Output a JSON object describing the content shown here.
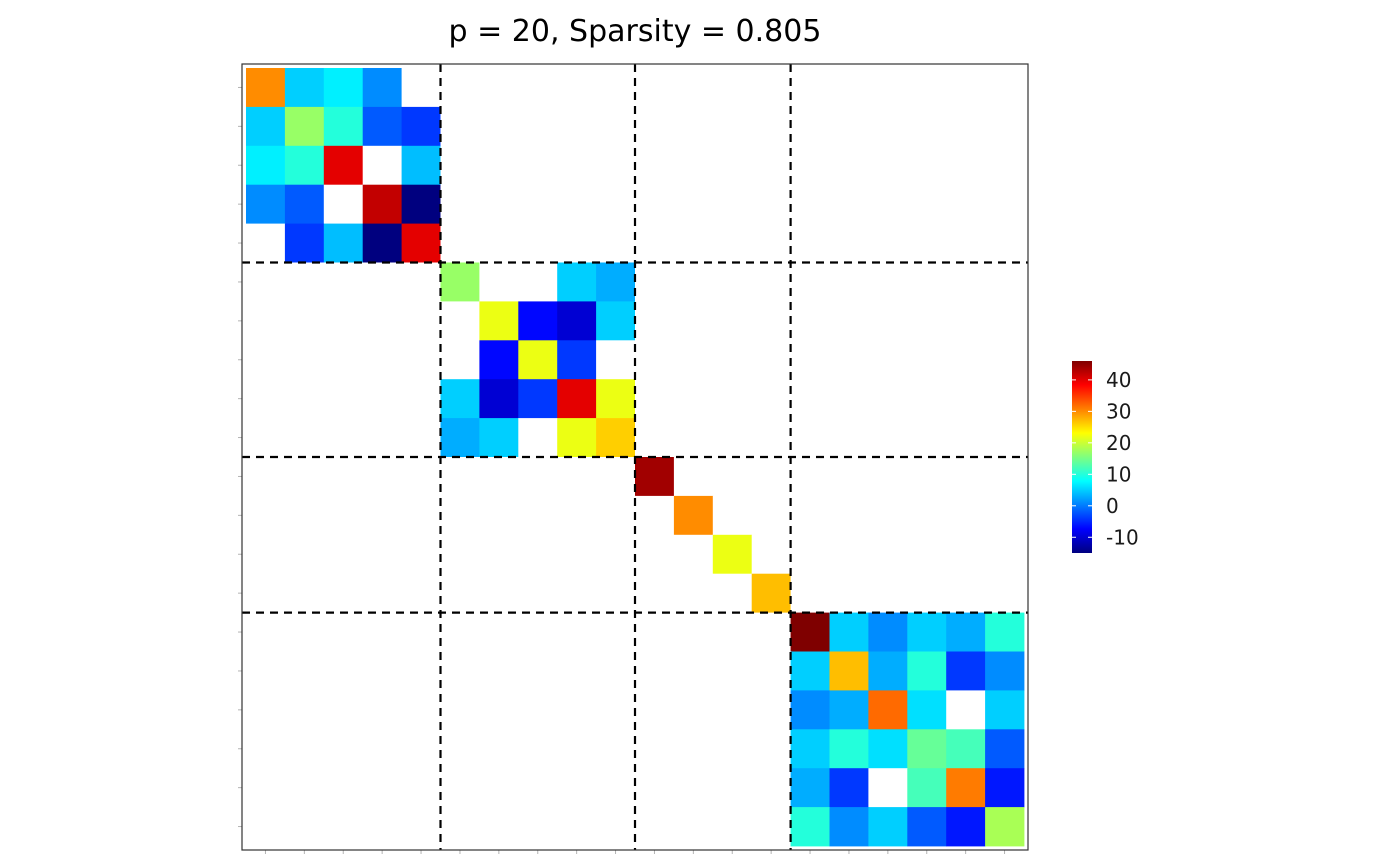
{
  "chart_data": {
    "type": "heatmap",
    "title": "p = 20, Sparsity = 0.805",
    "n": 20,
    "block_boundaries": [
      5,
      10,
      14
    ],
    "matrix": [
      [
        30,
        5,
        7,
        1,
        null,
        null,
        null,
        null,
        null,
        null,
        null,
        null,
        null,
        null,
        null,
        null,
        null,
        null,
        null,
        null
      ],
      [
        5,
        17,
        10,
        -2,
        -4,
        null,
        null,
        null,
        null,
        null,
        null,
        null,
        null,
        null,
        null,
        null,
        null,
        null,
        null,
        null
      ],
      [
        7,
        10,
        40,
        null,
        4,
        null,
        null,
        null,
        null,
        null,
        null,
        null,
        null,
        null,
        null,
        null,
        null,
        null,
        null,
        null
      ],
      [
        1,
        -2,
        null,
        42,
        -15,
        null,
        null,
        null,
        null,
        null,
        null,
        null,
        null,
        null,
        null,
        null,
        null,
        null,
        null,
        null
      ],
      [
        null,
        -4,
        4,
        -15,
        40,
        null,
        null,
        null,
        null,
        null,
        null,
        null,
        null,
        null,
        null,
        null,
        null,
        null,
        null,
        null
      ],
      [
        null,
        null,
        null,
        null,
        null,
        17,
        null,
        null,
        5,
        3,
        null,
        null,
        null,
        null,
        null,
        null,
        null,
        null,
        null,
        null
      ],
      [
        null,
        null,
        null,
        null,
        null,
        null,
        22,
        -7,
        -10,
        5,
        null,
        null,
        null,
        null,
        null,
        null,
        null,
        null,
        null,
        null
      ],
      [
        null,
        null,
        null,
        null,
        null,
        null,
        -7,
        22,
        -4,
        null,
        null,
        null,
        null,
        null,
        null,
        null,
        null,
        null,
        null,
        null
      ],
      [
        null,
        null,
        null,
        null,
        null,
        5,
        -10,
        -4,
        40,
        22,
        null,
        null,
        null,
        null,
        null,
        null,
        null,
        null,
        null,
        null
      ],
      [
        null,
        null,
        null,
        null,
        null,
        3,
        5,
        null,
        22,
        26,
        null,
        null,
        null,
        null,
        null,
        null,
        null,
        null,
        null,
        null
      ],
      [
        null,
        null,
        null,
        null,
        null,
        null,
        null,
        null,
        null,
        null,
        44,
        null,
        null,
        null,
        null,
        null,
        null,
        null,
        null,
        null
      ],
      [
        null,
        null,
        null,
        null,
        null,
        null,
        null,
        null,
        null,
        null,
        null,
        30,
        null,
        null,
        null,
        null,
        null,
        null,
        null,
        null
      ],
      [
        null,
        null,
        null,
        null,
        null,
        null,
        null,
        null,
        null,
        null,
        null,
        null,
        22,
        null,
        null,
        null,
        null,
        null,
        null,
        null
      ],
      [
        null,
        null,
        null,
        null,
        null,
        null,
        null,
        null,
        null,
        null,
        null,
        null,
        null,
        27,
        null,
        null,
        null,
        null,
        null,
        null
      ],
      [
        null,
        null,
        null,
        null,
        null,
        null,
        null,
        null,
        null,
        null,
        null,
        null,
        null,
        null,
        46,
        5,
        1,
        5,
        3,
        10
      ],
      [
        null,
        null,
        null,
        null,
        null,
        null,
        null,
        null,
        null,
        null,
        null,
        null,
        null,
        null,
        5,
        27,
        3,
        10,
        -4,
        1
      ],
      [
        null,
        null,
        null,
        null,
        null,
        null,
        null,
        null,
        null,
        null,
        null,
        null,
        null,
        null,
        1,
        3,
        32,
        6,
        null,
        5
      ],
      [
        null,
        null,
        null,
        null,
        null,
        null,
        null,
        null,
        null,
        null,
        null,
        null,
        null,
        null,
        5,
        10,
        6,
        14,
        12,
        -2
      ],
      [
        null,
        null,
        null,
        null,
        null,
        null,
        null,
        null,
        null,
        null,
        null,
        null,
        null,
        null,
        3,
        -4,
        null,
        12,
        31,
        -6
      ],
      [
        null,
        null,
        null,
        null,
        null,
        null,
        null,
        null,
        null,
        null,
        null,
        null,
        null,
        null,
        10,
        1,
        5,
        -2,
        -6,
        18
      ]
    ],
    "zero_color": "#ffffff",
    "colorbar": {
      "min": -15,
      "max": 46,
      "tick_values": [
        -10,
        0,
        10,
        20,
        30,
        40
      ],
      "tick_labels": [
        "-10",
        "0",
        "10",
        "20",
        "30",
        "40"
      ],
      "palette": [
        "#00007F",
        "#0000FF",
        "#007FFF",
        "#00FFFF",
        "#7FFF7F",
        "#FFFF00",
        "#FF7F00",
        "#FF0000",
        "#7F0000"
      ]
    },
    "grid": false,
    "legend_position": "right"
  }
}
